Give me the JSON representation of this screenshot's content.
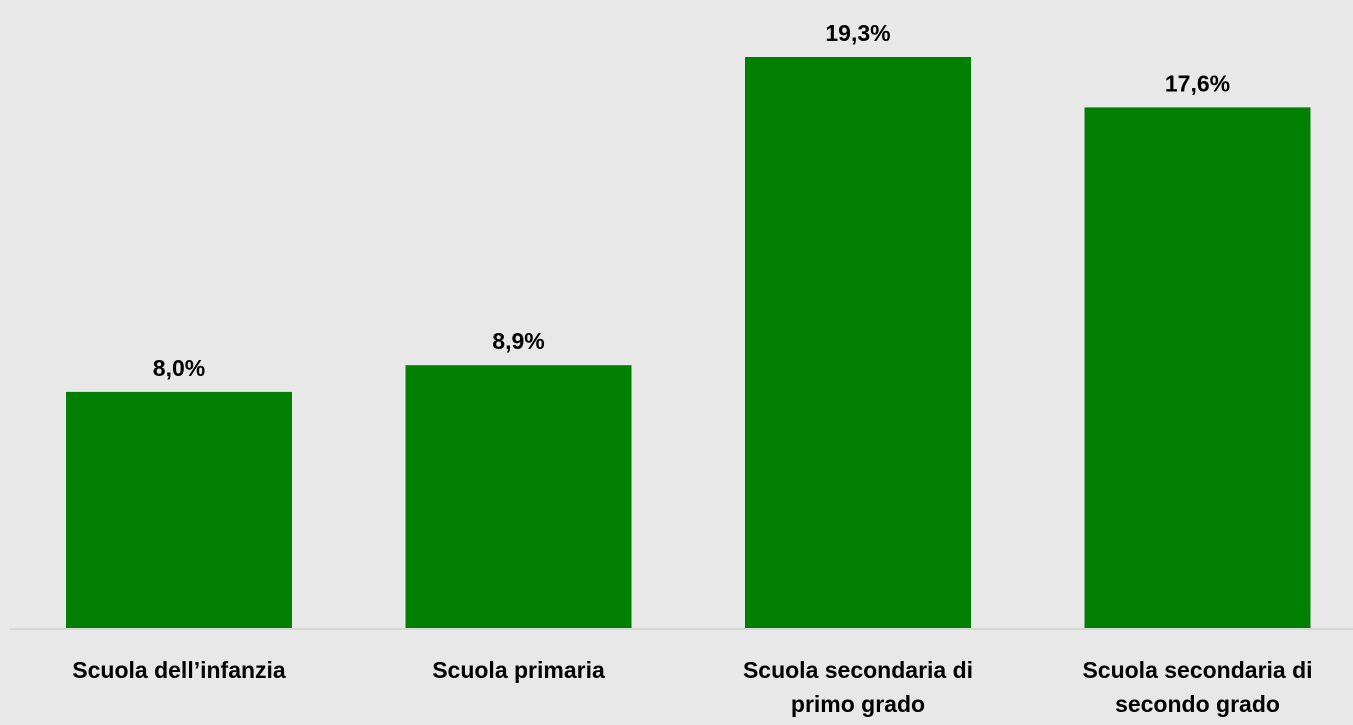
{
  "chart_data": {
    "type": "bar",
    "categories": [
      [
        "Scuola dell’infanzia"
      ],
      [
        "Scuola primaria"
      ],
      [
        "Scuola secondaria di",
        "primo grado"
      ],
      [
        "Scuola secondaria di",
        "secondo grado"
      ]
    ],
    "values": [
      8.0,
      8.9,
      19.3,
      17.6
    ],
    "value_labels": [
      "8,0%",
      "8,9%",
      "19,3%",
      "17,6%"
    ],
    "title": "",
    "xlabel": "",
    "ylabel": "",
    "ylim": [
      0,
      19.3
    ],
    "grid": false,
    "legend": "none"
  },
  "colors": {
    "background": "#e8e8e8",
    "bar": "#007f00",
    "baseline": "#d6d6d6",
    "text": "#000000"
  }
}
